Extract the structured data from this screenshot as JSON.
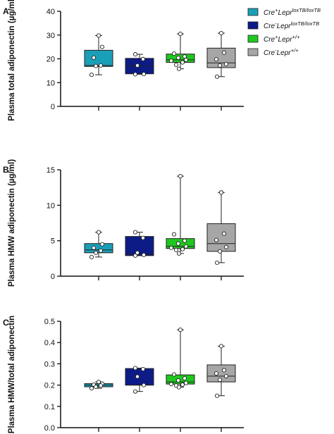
{
  "legend": {
    "entries": [
      {
        "base": "Cre",
        "base_sup": "+",
        "gene": "Lepr",
        "gene_sup": "loxTB/loxTB",
        "color": "#1a9fb8"
      },
      {
        "base": "Cre",
        "base_sup": "-",
        "gene": "Lepr",
        "gene_sup": "loxTB/loxTB",
        "color": "#0d1b86"
      },
      {
        "base": "Cre",
        "base_sup": "+",
        "gene": "Lepr",
        "gene_sup": "+/+",
        "color": "#1fc81f"
      },
      {
        "base": "Cre",
        "base_sup": "-",
        "gene": "Lepr",
        "gene_sup": "+/+",
        "color": "#a6a6a6"
      }
    ]
  },
  "chart_data": [
    {
      "panel": "A",
      "type": "box",
      "ylabel": "Plasma total adiponectin (µg/ml)",
      "ylim": [
        0,
        40
      ],
      "yticks": [
        0,
        10,
        20,
        30,
        40
      ],
      "groups": [
        {
          "color": "#1a9fb8",
          "min": 13.3,
          "q1": 16.8,
          "median": 17.2,
          "q3": 23.6,
          "max": 29.8,
          "points": [
            29.8,
            25.0,
            20.5,
            17.2,
            17.0,
            13.3
          ]
        },
        {
          "color": "#0d1b86",
          "min": 13.5,
          "q1": 13.7,
          "median": 17.0,
          "q3": 20.2,
          "max": 21.9,
          "points": [
            21.9,
            19.9,
            17.2,
            13.6,
            13.5
          ]
        },
        {
          "color": "#1fc81f",
          "min": 15.8,
          "q1": 18.5,
          "median": 19.6,
          "q3": 22.0,
          "max": 30.5,
          "points": [
            30.5,
            22.2,
            21.0,
            20.4,
            19.6,
            19.2,
            18.5,
            17.5,
            15.8
          ]
        },
        {
          "color": "#a6a6a6",
          "min": 12.5,
          "q1": 16.3,
          "median": 18.3,
          "q3": 24.5,
          "max": 30.8,
          "points": [
            30.8,
            22.6,
            19.8,
            17.8,
            17.2,
            12.5
          ]
        }
      ]
    },
    {
      "panel": "B",
      "type": "box",
      "ylabel": "Plasma HMW adiponectin (µg/ml)",
      "ylim": [
        0,
        15
      ],
      "yticks": [
        0,
        5,
        10,
        15
      ],
      "groups": [
        {
          "color": "#1a9fb8",
          "min": 2.7,
          "q1": 3.3,
          "median": 3.7,
          "q3": 4.6,
          "max": 6.2,
          "points": [
            6.2,
            4.5,
            4.0,
            3.6,
            3.3,
            2.7
          ]
        },
        {
          "color": "#0d1b86",
          "min": 2.9,
          "q1": 2.9,
          "median": 3.1,
          "q3": 5.6,
          "max": 6.2,
          "points": [
            6.2,
            5.4,
            3.3,
            3.0,
            2.9
          ]
        },
        {
          "color": "#1fc81f",
          "min": 3.2,
          "q1": 3.9,
          "median": 4.2,
          "q3": 5.3,
          "max": 14.1,
          "points": [
            14.1,
            5.9,
            5.0,
            4.6,
            4.2,
            4.0,
            3.8,
            3.7,
            3.2
          ]
        },
        {
          "color": "#a6a6a6",
          "min": 1.9,
          "q1": 3.5,
          "median": 4.6,
          "q3": 7.4,
          "max": 11.8,
          "points": [
            11.8,
            6.0,
            5.1,
            4.1,
            3.5,
            1.9
          ]
        }
      ]
    },
    {
      "panel": "C",
      "type": "box",
      "ylabel": "Plasma HMW/total adiponectin",
      "ylim": [
        0,
        0.5
      ],
      "yticks": [
        0,
        0.1,
        0.2,
        0.3,
        0.4,
        0.5
      ],
      "yticklabels": [
        "0.0",
        "0.1",
        "0.2",
        "0.3",
        "0.4",
        "0.5"
      ],
      "groups": [
        {
          "color": "#1a9fb8",
          "min": 0.185,
          "q1": 0.192,
          "median": 0.2,
          "q3": 0.207,
          "max": 0.215,
          "points": [
            0.215,
            0.207,
            0.202,
            0.198,
            0.192,
            0.185
          ]
        },
        {
          "color": "#0d1b86",
          "min": 0.17,
          "q1": 0.2,
          "median": 0.2,
          "q3": 0.278,
          "max": 0.28,
          "points": [
            0.28,
            0.275,
            0.24,
            0.2,
            0.17
          ]
        },
        {
          "color": "#1fc81f",
          "min": 0.19,
          "q1": 0.205,
          "median": 0.215,
          "q3": 0.248,
          "max": 0.46,
          "points": [
            0.46,
            0.25,
            0.232,
            0.222,
            0.21,
            0.205,
            0.202,
            0.198,
            0.19
          ]
        },
        {
          "color": "#a6a6a6",
          "min": 0.15,
          "q1": 0.215,
          "median": 0.242,
          "q3": 0.295,
          "max": 0.383,
          "points": [
            0.383,
            0.27,
            0.255,
            0.242,
            0.225,
            0.15
          ]
        }
      ]
    }
  ]
}
